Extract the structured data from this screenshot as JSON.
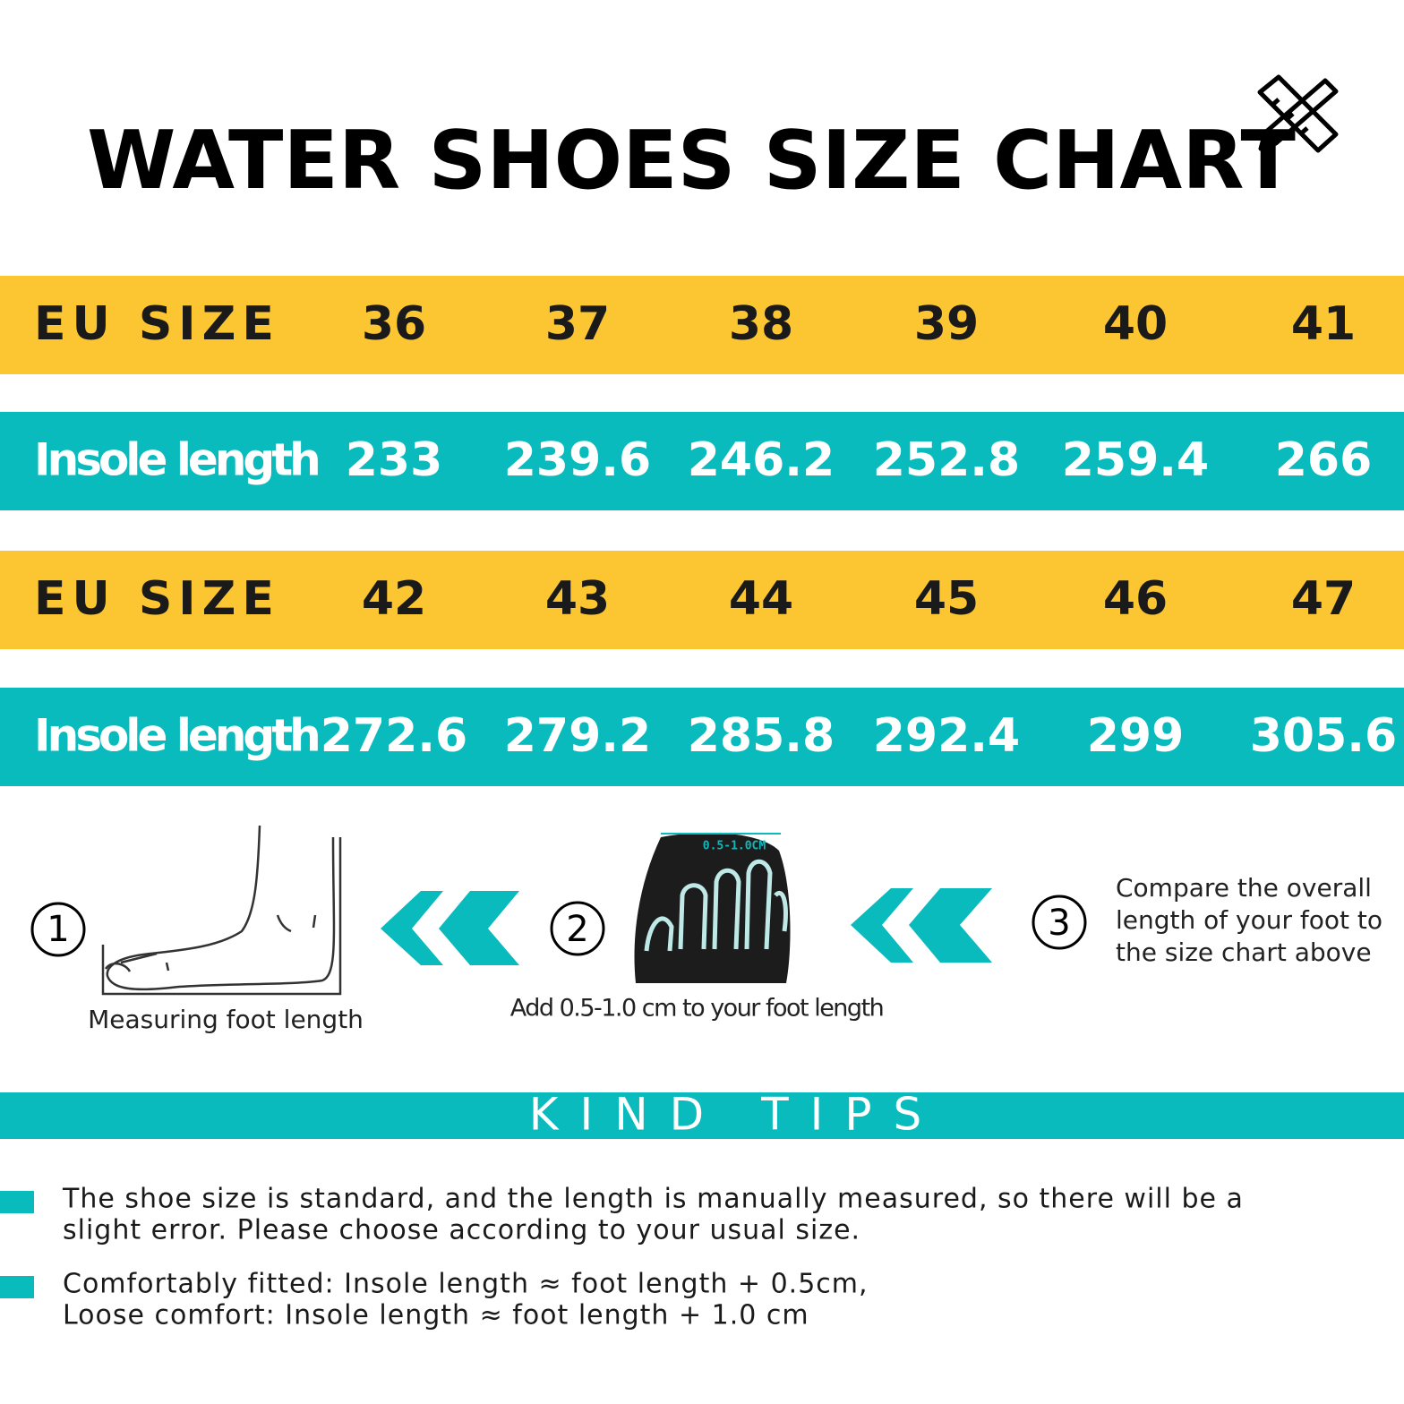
{
  "header": {
    "title": "WATER SHOES SIZE CHART"
  },
  "table": {
    "rows": [
      {
        "label": "EU SIZE",
        "kind": "size",
        "cells": [
          36,
          37,
          38,
          39,
          40,
          41
        ]
      },
      {
        "label": "Insole length",
        "kind": "length",
        "cells": [
          233,
          239.6,
          246.2,
          252.8,
          259.4,
          266
        ]
      },
      {
        "label": "EU SIZE",
        "kind": "size",
        "cells": [
          42,
          43,
          44,
          45,
          46,
          47
        ]
      },
      {
        "label": "Insole length",
        "kind": "length",
        "cells": [
          272.6,
          279.2,
          285.8,
          292.4,
          299,
          305.6
        ]
      }
    ]
  },
  "steps": [
    {
      "marker": "①",
      "caption": "Measuring foot length"
    },
    {
      "marker": "②",
      "image_label": "0.5-1.0CM",
      "caption": "Add 0.5-1.0 cm to your foot length"
    },
    {
      "marker": "③",
      "lines": [
        "Compare the overall",
        "length of your foot to",
        "the size chart above"
      ]
    }
  ],
  "tips": {
    "title": "KIND TIPS",
    "items": [
      {
        "lines": [
          "The shoe size is standard, and the length is manually measured, so there will be a",
          "slight error. Please choose according to your usual size."
        ]
      },
      {
        "lines": [
          "Comfortably fitted: Insole length ≈ foot length + 0.5cm,",
          "Loose comfort: Insole length ≈ foot length + 1.0 cm"
        ]
      }
    ]
  }
}
